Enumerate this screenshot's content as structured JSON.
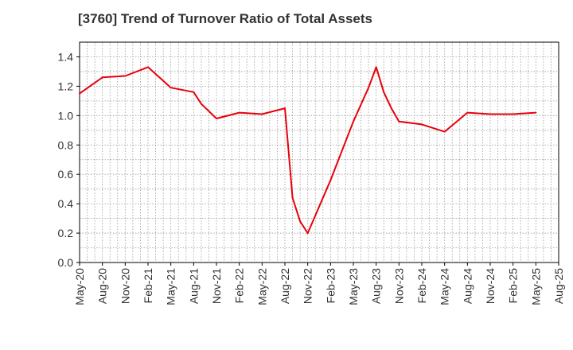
{
  "chart_data": {
    "type": "line",
    "title": "[3760]  Trend of Turnover Ratio of Total Assets",
    "xlabel": "",
    "ylabel": "",
    "ylim": [
      0,
      1.5
    ],
    "yticks": [
      "0.0",
      "0.2",
      "0.4",
      "0.6",
      "0.8",
      "1.0",
      "1.2",
      "1.4"
    ],
    "xticks": [
      "May-20",
      "Aug-20",
      "Nov-20",
      "Feb-21",
      "May-21",
      "Aug-21",
      "Nov-21",
      "Feb-22",
      "May-22",
      "Aug-22",
      "Nov-22",
      "Feb-23",
      "May-23",
      "Aug-23",
      "Nov-23",
      "Feb-24",
      "May-24",
      "Aug-24",
      "Nov-24",
      "Feb-25",
      "May-25",
      "Aug-25"
    ],
    "grid": true,
    "legend": "none",
    "series": [
      {
        "color": "#e8000b",
        "x": [
          "May-20",
          "Aug-20",
          "Nov-20",
          "Feb-21",
          "May-21",
          "Aug-21",
          "Sep-21",
          "Nov-21",
          "Feb-22",
          "May-22",
          "Aug-22",
          "Sep-22",
          "Oct-22",
          "Nov-22",
          "Feb-23",
          "May-23",
          "Jul-23",
          "Aug-23",
          "Sep-23",
          "Oct-23",
          "Nov-23",
          "Feb-24",
          "May-24",
          "Aug-24",
          "Nov-24",
          "Feb-25",
          "May-25"
        ],
        "values": [
          1.15,
          1.26,
          1.27,
          1.33,
          1.19,
          1.16,
          1.08,
          0.98,
          1.02,
          1.01,
          1.05,
          0.44,
          0.28,
          0.2,
          0.56,
          0.96,
          1.19,
          1.33,
          1.16,
          1.05,
          0.96,
          0.94,
          0.89,
          1.02,
          1.01,
          1.01,
          1.02
        ]
      }
    ]
  }
}
